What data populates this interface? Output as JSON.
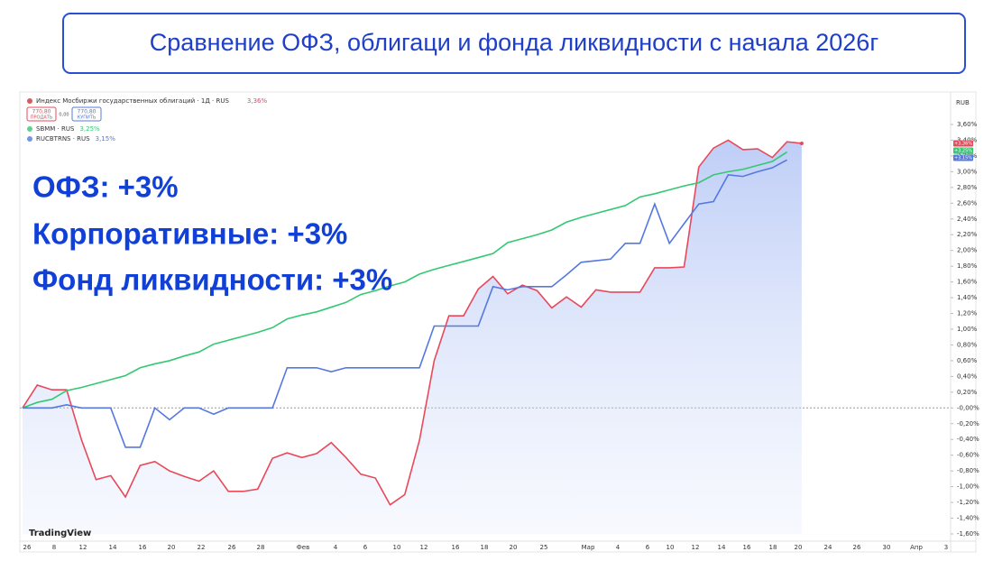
{
  "title": "Сравнение ОФЗ, облигаци и фонда ликвидности с начала 2026г",
  "chart_data": {
    "type": "line",
    "currency": "RUB",
    "watermark": "TradingView",
    "annotations": [
      "ОФЗ: +3%",
      "Корпоративные: +3%",
      "Фонд ликвидности: +3%"
    ],
    "buttons": {
      "sell_price": "770,80",
      "sell": "ПРОДАТЬ",
      "spread": "0,00",
      "buy_price": "770,80",
      "buy": "КУПИТЬ"
    },
    "x_labels": [
      "26",
      "8",
      "12",
      "14",
      "16",
      "20",
      "22",
      "26",
      "28",
      "Фев",
      "4",
      "6",
      "10",
      "12",
      "16",
      "18",
      "20",
      "25",
      "Мар",
      "4",
      "6",
      "10",
      "12",
      "14",
      "16",
      "18",
      "20",
      "24",
      "26",
      "30",
      "Апр",
      "3"
    ],
    "ylim": [
      -1.6,
      3.6
    ],
    "yticks": [
      {
        "value": 3.6,
        "label": "3,60%"
      },
      {
        "value": 3.4,
        "label": "3,40%"
      },
      {
        "value": 3.2,
        "label": "3,20%"
      },
      {
        "value": 3.0,
        "label": "3,00%"
      },
      {
        "value": 2.8,
        "label": "2,80%"
      },
      {
        "value": 2.6,
        "label": "2,60%"
      },
      {
        "value": 2.4,
        "label": "2,40%"
      },
      {
        "value": 2.2,
        "label": "2,20%"
      },
      {
        "value": 2.0,
        "label": "2,00%"
      },
      {
        "value": 1.8,
        "label": "1,80%"
      },
      {
        "value": 1.6,
        "label": "1,60%"
      },
      {
        "value": 1.4,
        "label": "1,40%"
      },
      {
        "value": 1.2,
        "label": "1,20%"
      },
      {
        "value": 1.0,
        "label": "1,00%"
      },
      {
        "value": 0.8,
        "label": "0,80%"
      },
      {
        "value": 0.6,
        "label": "0,60%"
      },
      {
        "value": 0.4,
        "label": "0,40%"
      },
      {
        "value": 0.2,
        "label": "0,20%"
      },
      {
        "value": 0,
        "label": "-0,00%"
      },
      {
        "value": -0.2,
        "label": "-0,20%"
      },
      {
        "value": -0.4,
        "label": "-0,40%"
      },
      {
        "value": -0.6,
        "label": "-0,60%"
      },
      {
        "value": -0.8,
        "label": "-0,80%"
      },
      {
        "value": -1.0,
        "label": "-1,00%"
      },
      {
        "value": -1.2,
        "label": "-1,20%"
      },
      {
        "value": -1.4,
        "label": "-1,40%"
      },
      {
        "value": -1.6,
        "label": "-1,60%"
      }
    ],
    "series": [
      {
        "name": "Индекс Мосбиржи государственных облигаций · 1Д · RUS",
        "legend_value": "3,36%",
        "tag": "+3,36%",
        "color": "#e8495a",
        "fill": true,
        "values": [
          0,
          0.29,
          0.23,
          0.23,
          -0.4,
          -0.91,
          -0.86,
          -1.13,
          -0.73,
          -0.68,
          -0.8,
          -0.87,
          -0.93,
          -0.8,
          -1.06,
          -1.06,
          -1.03,
          -0.64,
          -0.57,
          -0.63,
          -0.58,
          -0.44,
          -0.63,
          -0.84,
          -0.89,
          -1.23,
          -1.1,
          -0.41,
          0.6,
          1.17,
          1.17,
          1.51,
          1.67,
          1.45,
          1.56,
          1.49,
          1.27,
          1.41,
          1.28,
          1.5,
          1.47,
          1.47,
          1.47,
          1.78,
          1.78,
          1.79,
          3.06,
          3.3,
          3.4,
          3.28,
          3.29,
          3.18,
          3.38,
          3.36
        ]
      },
      {
        "name": "SBMM · RUS",
        "legend_value": "3,25%",
        "tag": "+3,25%",
        "color": "#33c872",
        "fill": false,
        "values": [
          0,
          0.07,
          0.11,
          0.22,
          0.26,
          0.31,
          0.36,
          0.41,
          0.51,
          0.56,
          0.6,
          0.66,
          0.71,
          0.81,
          0.86,
          0.91,
          0.96,
          1.02,
          1.13,
          1.18,
          1.22,
          1.28,
          1.34,
          1.44,
          1.49,
          1.55,
          1.6,
          1.7,
          1.76,
          1.81,
          1.86,
          1.91,
          1.96,
          2.1,
          2.15,
          2.2,
          2.26,
          2.36,
          2.42,
          2.47,
          2.52,
          2.57,
          2.68,
          2.72,
          2.77,
          2.82,
          2.86,
          2.96,
          3.0,
          3.03,
          3.08,
          3.13,
          3.25,
          null
        ]
      },
      {
        "name": "RUCBTRNS · RUS",
        "legend_value": "3,15%",
        "tag": "+3,15%",
        "color": "#5578e0",
        "fill": false,
        "values": [
          0,
          0,
          0,
          0.04,
          0,
          0,
          0,
          -0.5,
          -0.5,
          0,
          -0.15,
          0,
          0,
          -0.08,
          0,
          0,
          0,
          0,
          0.51,
          0.51,
          0.51,
          0.46,
          0.51,
          0.51,
          0.51,
          0.51,
          0.51,
          0.51,
          1.04,
          1.04,
          1.04,
          1.04,
          1.54,
          1.5,
          1.54,
          1.54,
          1.54,
          1.69,
          1.85,
          1.87,
          1.89,
          2.09,
          2.09,
          2.59,
          2.09,
          2.34,
          2.59,
          2.62,
          2.96,
          2.94,
          3.0,
          3.05,
          3.15,
          null
        ]
      }
    ]
  }
}
